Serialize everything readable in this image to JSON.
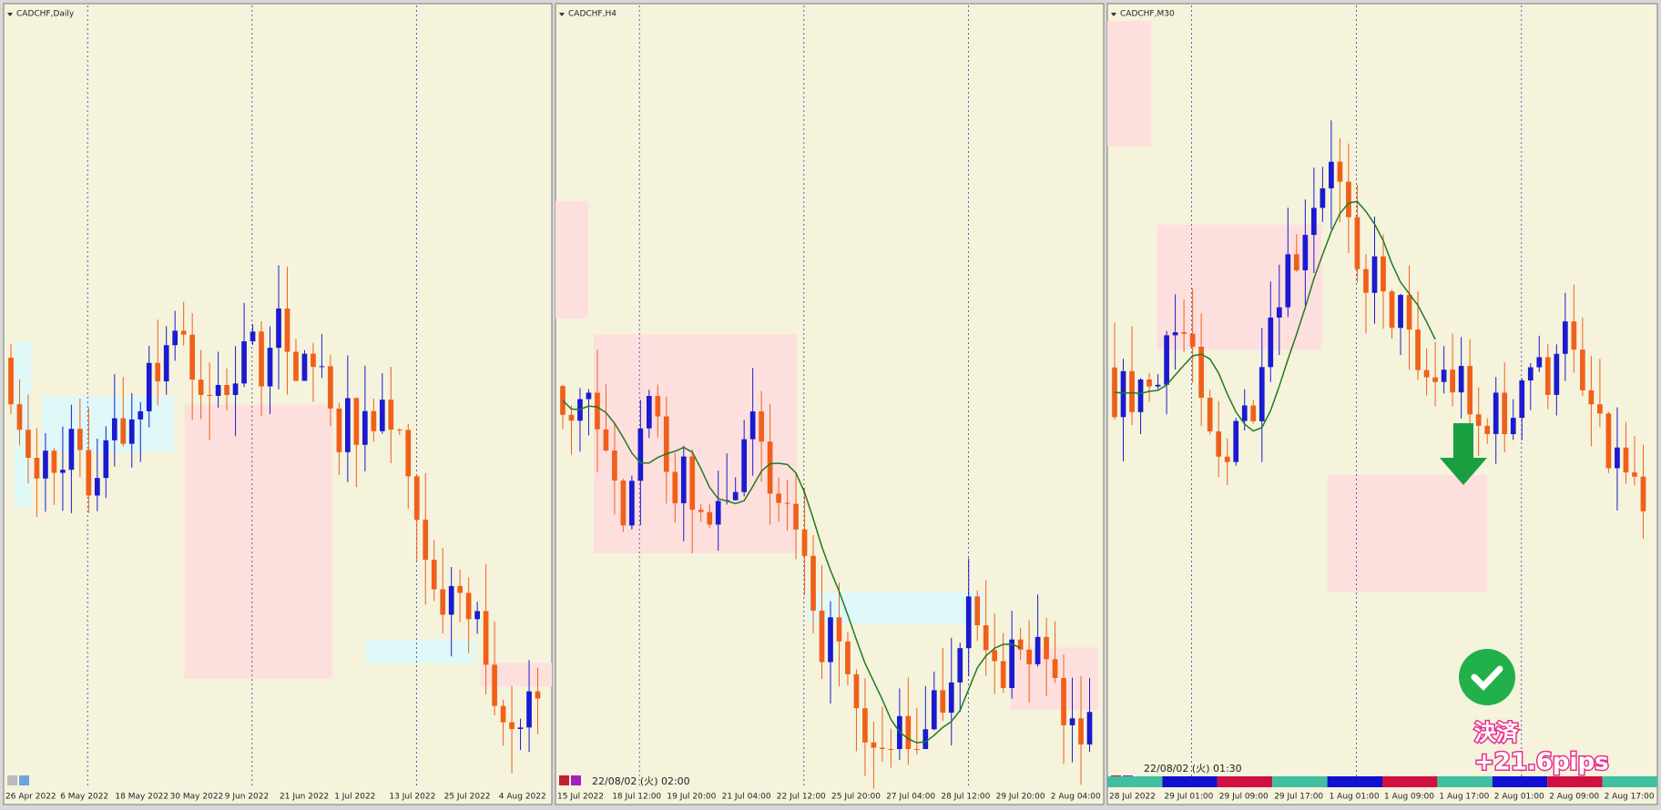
{
  "panels": [
    {
      "title": "CADCHF,Daily",
      "x_labels": [
        "26 Apr 2022",
        "6 May 2022",
        "18 May 2022",
        "30 May 2022",
        "9 Jun 2022",
        "21 Jun 2022",
        "1 Jul 2022",
        "13 Jul 2022",
        "25 Jul 2022",
        "4 Aug 2022"
      ]
    },
    {
      "title": "CADCHF,H4",
      "timestamp": "22/08/02 (火) 02:00",
      "x_labels": [
        "15 Jul 2022",
        "18 Jul 12:00",
        "19 Jul 20:00",
        "21 Jul 04:00",
        "22 Jul 12:00",
        "25 Jul 20:00",
        "27 Jul 04:00",
        "28 Jul 12:00",
        "29 Jul 20:00",
        "2 Aug 04:00"
      ]
    },
    {
      "title": "CADCHF,M30",
      "timestamp": "22/08/02 (火) 01:30",
      "x_labels": [
        "28 Jul 2022",
        "29 Jul 01:00",
        "29 Jul 09:00",
        "29 Jul 17:00",
        "1 Aug 01:00",
        "1 Aug 09:00",
        "1 Aug 17:00",
        "2 Aug 01:00",
        "2 Aug 09:00",
        "2 Aug 17:00"
      ],
      "annotation": {
        "label": "決済",
        "value": "+21.6pips"
      }
    }
  ]
}
